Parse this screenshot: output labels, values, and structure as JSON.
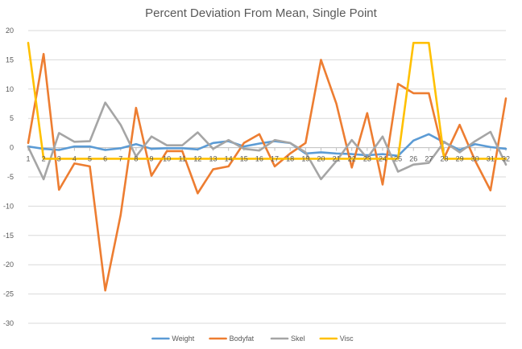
{
  "chart_data": {
    "type": "line",
    "title": "Percent Deviation From Mean, Single Point",
    "xlabel": "",
    "ylabel": "",
    "categories": [
      "1",
      "2",
      "3",
      "4",
      "5",
      "6",
      "7",
      "8",
      "9",
      "10",
      "11",
      "12",
      "13",
      "14",
      "15",
      "16",
      "17",
      "18",
      "19",
      "20",
      "21",
      "22",
      "23",
      "24",
      "25",
      "26",
      "27",
      "28",
      "29",
      "30",
      "31",
      "32"
    ],
    "ylim": [
      -30,
      20
    ],
    "ytick_step": 5,
    "yticks": [
      "-30",
      "-25",
      "-20",
      "-15",
      "-10",
      "-5",
      "0",
      "5",
      "10",
      "15",
      "20"
    ],
    "grid": true,
    "legend_position": "bottom",
    "series": [
      {
        "name": "Weight",
        "color": "#5B9BD5",
        "values": [
          0.2,
          -0.2,
          -0.4,
          0.2,
          0.2,
          -0.4,
          -0.1,
          0.6,
          -0.2,
          -0.1,
          -0.1,
          -0.3,
          0.8,
          1.1,
          0.2,
          0.7,
          1.1,
          0.8,
          -1.0,
          -0.8,
          -1.0,
          -1.1,
          -1.3,
          -1.1,
          -1.4,
          1.2,
          2.3,
          0.9,
          -0.4,
          0.6,
          0.1,
          -0.2
        ]
      },
      {
        "name": "Bodyfat",
        "color": "#ED7D31",
        "values": [
          0.8,
          16.0,
          -7.2,
          -2.7,
          -3.2,
          -24.4,
          -11.5,
          6.8,
          -4.8,
          -0.6,
          -0.6,
          -7.8,
          -3.7,
          -3.2,
          0.8,
          2.3,
          -3.2,
          -1.0,
          0.8,
          15.0,
          7.5,
          -3.4,
          5.9,
          -6.3,
          10.9,
          9.3,
          9.3,
          -1.7,
          3.9,
          -2.2,
          -7.3,
          8.4
        ]
      },
      {
        "name": "Skel",
        "color": "#A5A5A5",
        "values": [
          0.1,
          -5.4,
          2.5,
          1.0,
          1.1,
          7.7,
          3.9,
          -1.5,
          1.9,
          0.4,
          0.4,
          2.6,
          -0.2,
          1.3,
          -0.2,
          -0.5,
          1.3,
          0.8,
          -0.8,
          -5.4,
          -2.3,
          1.3,
          -1.8,
          1.9,
          -4.1,
          -2.9,
          -2.6,
          1.0,
          -0.8,
          1.1,
          2.7,
          -2.9
        ]
      },
      {
        "name": "Visc",
        "color": "#FFC000",
        "values": [
          17.9,
          -1.9,
          -1.9,
          -1.9,
          -1.9,
          -1.9,
          -1.9,
          -1.9,
          -1.9,
          -1.9,
          -1.9,
          -1.9,
          -1.9,
          -1.9,
          -1.9,
          -1.9,
          -1.9,
          -1.9,
          -1.9,
          -1.9,
          -1.9,
          -1.9,
          -1.9,
          -1.9,
          -1.9,
          17.9,
          17.9,
          -1.9,
          -1.9,
          -1.9,
          -1.9,
          -1.9
        ]
      }
    ]
  }
}
